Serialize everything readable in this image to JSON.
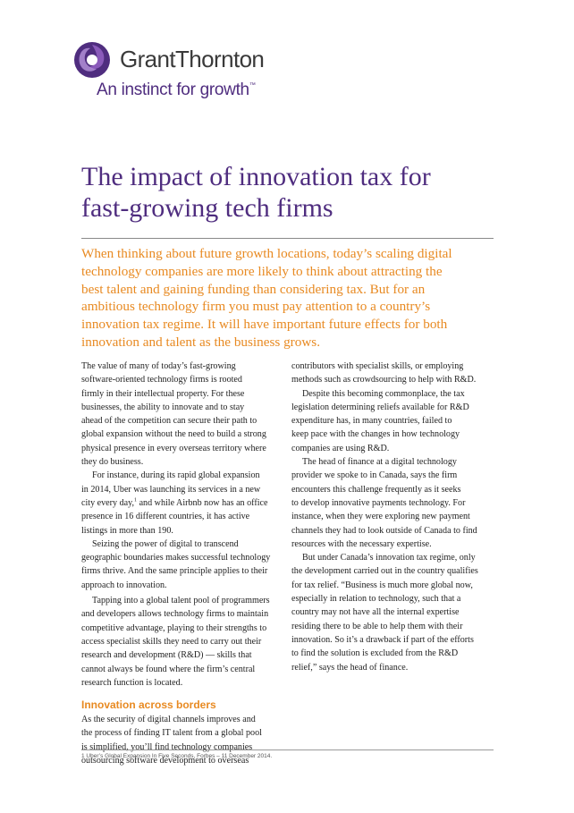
{
  "logo": {
    "name": "GrantThornton",
    "tagline": "An instinct for growth",
    "trademark": "™",
    "colors": {
      "purple": "#4f2d7f",
      "violet": "#8a5aba",
      "text": "#3a3a3a"
    }
  },
  "title_lines": [
    "The impact of innovation tax for",
    "fast-growing tech firms"
  ],
  "intro_lines": [
    "When thinking about future growth locations, today’s scaling digital",
    "technology companies are more likely to think about attracting the",
    "best talent and gaining funding than considering tax. But for an",
    "ambitious technology firm you must pay attention to a country’s",
    "innovation tax regime. It will have important future effects for both",
    "innovation and talent as the business grows."
  ],
  "left_column": {
    "p1": [
      "The value of many of today’s fast-growing",
      "software-oriented technology firms is rooted",
      "firmly in their intellectual property. For these",
      "businesses, the ability to innovate and to stay",
      "ahead of the competition can secure their path to",
      "global expansion without the need to build a strong",
      "physical presence in every overseas territory where",
      "they do business."
    ],
    "p2": {
      "line1": "For instance, during its rapid global expansion",
      "line2": "in 2014, Uber was launching its services in a new",
      "line3_before": "city every day,",
      "line3_sup": "1",
      "line3_after": " and while Airbnb now has an office",
      "line4": "presence in 16 different countries, it has active",
      "line5": "listings in more than 190."
    },
    "p3": [
      "Seizing the power of digital to transcend",
      "geographic boundaries makes successful technology",
      "firms thrive. And the same principle applies to their",
      "approach to innovation."
    ],
    "p4": [
      "Tapping into a global talent pool of programmers",
      "and developers allows technology firms to maintain",
      "competitive advantage, playing to their strengths to",
      "access specialist skills they need to carry out their",
      "research and development (R&D) — skills that",
      "cannot always be found where the firm’s central",
      "research function is located."
    ],
    "subhead": "Innovation across borders",
    "p5": [
      "As the security of digital channels improves and",
      "the process of finding IT talent from a global pool",
      "is simplified, you’ll find technology companies",
      "outsourcing software development to overseas"
    ]
  },
  "right_column": {
    "p1": [
      "contributors with specialist skills, or employing",
      "methods such as crowdsourcing to help with R&D."
    ],
    "p2": [
      "Despite this becoming commonplace, the tax",
      "legislation determining reliefs available for R&D",
      "expenditure has, in many countries, failed to",
      "keep pace with the changes in how technology",
      "companies are using R&D."
    ],
    "p3": [
      "The head of finance at a digital technology",
      "provider we spoke to in Canada, says the firm",
      "encounters this challenge frequently as it seeks",
      "to develop innovative payments technology. For",
      "instance, when they were exploring new payment",
      "channels they had to look outside of Canada to find",
      "resources with the necessary expertise."
    ],
    "p4": [
      "But under Canada’s innovation tax regime, only",
      "the development carried out in the country qualifies",
      "for tax relief. “Business is much more global now,",
      "especially in relation to technology, such that a",
      "country may not have all the internal expertise",
      "residing there to be able to help them with their",
      "innovation. So it’s a drawback if part of the efforts",
      "to find the solution is excluded from the R&D",
      "relief,” says the head of finance."
    ]
  },
  "footnote": "1 Uber’s Global Expansion In Five Seconds, Forbes – 11 December 2014."
}
